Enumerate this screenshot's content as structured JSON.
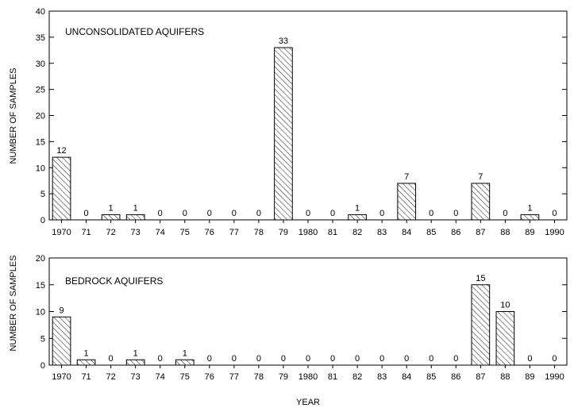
{
  "chart_data": [
    {
      "type": "bar",
      "title": "UNCONSOLIDATED AQUIFERS",
      "xlabel": "YEAR",
      "ylabel": "NUMBER OF SAMPLES",
      "ylim": [
        0,
        40
      ],
      "yticks": [
        0,
        5,
        10,
        15,
        20,
        25,
        30,
        35,
        40
      ],
      "grid": false,
      "bar_pattern": "diagonal-hatch",
      "categories": [
        "1970",
        "71",
        "72",
        "73",
        "74",
        "75",
        "76",
        "77",
        "78",
        "79",
        "1980",
        "81",
        "82",
        "83",
        "84",
        "85",
        "86",
        "87",
        "88",
        "89",
        "1990"
      ],
      "values": [
        12,
        0,
        1,
        1,
        0,
        0,
        0,
        0,
        0,
        33,
        0,
        0,
        1,
        0,
        7,
        0,
        0,
        7,
        0,
        1,
        0
      ]
    },
    {
      "type": "bar",
      "title": "BEDROCK AQUIFERS",
      "xlabel": "YEAR",
      "ylabel": "NUMBER OF SAMPLES",
      "ylim": [
        0,
        20
      ],
      "yticks": [
        0,
        5,
        10,
        15,
        20
      ],
      "grid": false,
      "bar_pattern": "diagonal-hatch",
      "categories": [
        "1970",
        "71",
        "72",
        "73",
        "74",
        "75",
        "76",
        "77",
        "78",
        "79",
        "1980",
        "81",
        "82",
        "83",
        "84",
        "85",
        "86",
        "87",
        "88",
        "89",
        "1990"
      ],
      "values": [
        9,
        1,
        0,
        1,
        0,
        1,
        0,
        0,
        0,
        0,
        0,
        0,
        0,
        0,
        0,
        0,
        0,
        15,
        10,
        0,
        0
      ]
    }
  ],
  "colors": {
    "ink": "#000000",
    "background": "#ffffff"
  }
}
